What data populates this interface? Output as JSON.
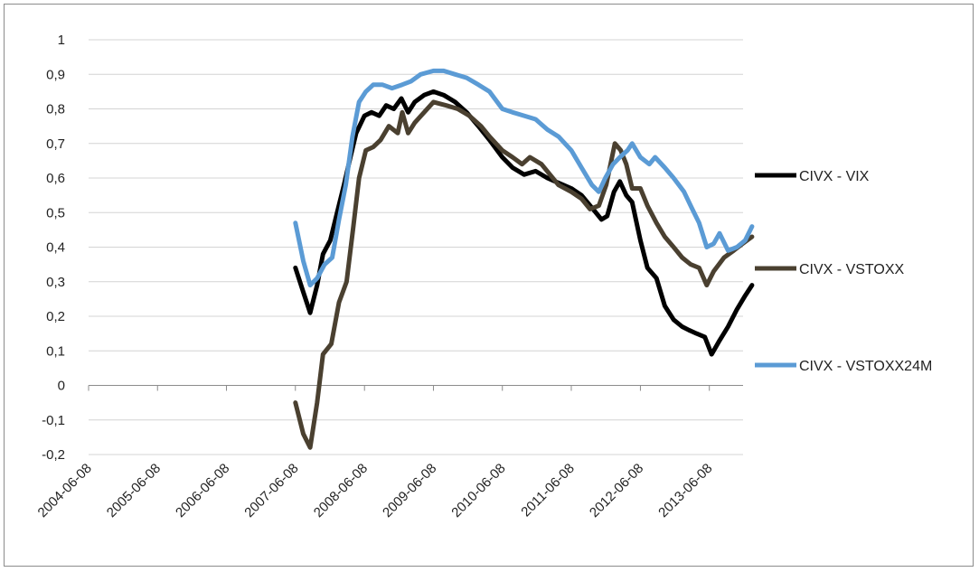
{
  "chart_data": {
    "type": "line",
    "title": "",
    "xlabel": "",
    "ylabel": "",
    "x_ticks": [
      "2004-06-08",
      "2005-06-08",
      "2006-06-08",
      "2007-06-08",
      "2008-06-08",
      "2009-06-08",
      "2010-06-08",
      "2011-06-08",
      "2012-06-08",
      "2013-06-08"
    ],
    "y_ticks": [
      "1",
      "0,9",
      "0,8",
      "0,7",
      "0,6",
      "0,5",
      "0,4",
      "0,3",
      "0,2",
      "0,1",
      "0",
      "-0,1",
      "-0,2"
    ],
    "ylim": [
      -0.2,
      1.0
    ],
    "xlim": [
      "2004-06-08",
      "2014-01-20"
    ],
    "grid": "horizontal",
    "legend_position": "right",
    "series": [
      {
        "name": "CIVX - VIX",
        "color": "#000000",
        "points": [
          [
            "2007-06-08",
            0.34
          ],
          [
            "2007-07-20",
            0.27
          ],
          [
            "2007-08-25",
            0.21
          ],
          [
            "2007-10-01",
            0.29
          ],
          [
            "2007-11-01",
            0.38
          ],
          [
            "2007-12-10",
            0.42
          ],
          [
            "2008-01-15",
            0.5
          ],
          [
            "2008-02-20",
            0.58
          ],
          [
            "2008-03-25",
            0.66
          ],
          [
            "2008-04-25",
            0.73
          ],
          [
            "2008-06-08",
            0.78
          ],
          [
            "2008-07-15",
            0.79
          ],
          [
            "2008-08-25",
            0.78
          ],
          [
            "2008-10-01",
            0.81
          ],
          [
            "2008-11-10",
            0.8
          ],
          [
            "2008-12-20",
            0.83
          ],
          [
            "2009-01-25",
            0.79
          ],
          [
            "2009-03-01",
            0.82
          ],
          [
            "2009-04-20",
            0.84
          ],
          [
            "2009-06-08",
            0.85
          ],
          [
            "2009-08-01",
            0.84
          ],
          [
            "2009-10-01",
            0.82
          ],
          [
            "2009-12-01",
            0.79
          ],
          [
            "2010-02-01",
            0.75
          ],
          [
            "2010-04-01",
            0.71
          ],
          [
            "2010-06-08",
            0.66
          ],
          [
            "2010-08-01",
            0.63
          ],
          [
            "2010-10-01",
            0.61
          ],
          [
            "2010-12-01",
            0.62
          ],
          [
            "2011-02-01",
            0.6
          ],
          [
            "2011-03-15",
            0.59
          ],
          [
            "2011-06-08",
            0.57
          ],
          [
            "2011-08-01",
            0.55
          ],
          [
            "2011-10-01",
            0.51
          ],
          [
            "2011-11-15",
            0.48
          ],
          [
            "2011-12-15",
            0.49
          ],
          [
            "2012-01-20",
            0.56
          ],
          [
            "2012-02-20",
            0.59
          ],
          [
            "2012-03-25",
            0.55
          ],
          [
            "2012-04-25",
            0.53
          ],
          [
            "2012-06-08",
            0.42
          ],
          [
            "2012-07-15",
            0.34
          ],
          [
            "2012-09-01",
            0.31
          ],
          [
            "2012-10-15",
            0.23
          ],
          [
            "2012-12-01",
            0.19
          ],
          [
            "2013-01-15",
            0.17
          ],
          [
            "2013-02-20",
            0.16
          ],
          [
            "2013-04-01",
            0.15
          ],
          [
            "2013-05-15",
            0.14
          ],
          [
            "2013-06-20",
            0.09
          ],
          [
            "2013-08-01",
            0.13
          ],
          [
            "2013-09-15",
            0.17
          ],
          [
            "2013-11-01",
            0.22
          ],
          [
            "2013-12-15",
            0.26
          ],
          [
            "2014-01-20",
            0.29
          ]
        ]
      },
      {
        "name": "CIVX - VSTOXX",
        "color": "#4a4030",
        "points": [
          [
            "2007-06-08",
            -0.05
          ],
          [
            "2007-07-20",
            -0.14
          ],
          [
            "2007-08-25",
            -0.18
          ],
          [
            "2007-10-01",
            -0.05
          ],
          [
            "2007-11-01",
            0.09
          ],
          [
            "2007-12-15",
            0.12
          ],
          [
            "2008-01-25",
            0.24
          ],
          [
            "2008-03-05",
            0.3
          ],
          [
            "2008-04-10",
            0.46
          ],
          [
            "2008-05-10",
            0.6
          ],
          [
            "2008-06-15",
            0.68
          ],
          [
            "2008-07-25",
            0.69
          ],
          [
            "2008-09-01",
            0.71
          ],
          [
            "2008-10-15",
            0.75
          ],
          [
            "2008-12-01",
            0.73
          ],
          [
            "2008-12-25",
            0.79
          ],
          [
            "2009-01-25",
            0.73
          ],
          [
            "2009-03-01",
            0.76
          ],
          [
            "2009-04-20",
            0.79
          ],
          [
            "2009-06-08",
            0.82
          ],
          [
            "2009-08-15",
            0.81
          ],
          [
            "2009-10-15",
            0.8
          ],
          [
            "2009-12-15",
            0.78
          ],
          [
            "2010-02-15",
            0.75
          ],
          [
            "2010-04-01",
            0.72
          ],
          [
            "2010-06-08",
            0.68
          ],
          [
            "2010-08-01",
            0.66
          ],
          [
            "2010-09-20",
            0.64
          ],
          [
            "2010-11-01",
            0.66
          ],
          [
            "2011-01-01",
            0.64
          ],
          [
            "2011-02-15",
            0.61
          ],
          [
            "2011-04-01",
            0.58
          ],
          [
            "2011-06-08",
            0.56
          ],
          [
            "2011-08-01",
            0.54
          ],
          [
            "2011-09-15",
            0.51
          ],
          [
            "2011-11-01",
            0.52
          ],
          [
            "2011-12-10",
            0.58
          ],
          [
            "2012-01-25",
            0.7
          ],
          [
            "2012-02-25",
            0.68
          ],
          [
            "2012-03-25",
            0.64
          ],
          [
            "2012-04-25",
            0.57
          ],
          [
            "2012-06-08",
            0.57
          ],
          [
            "2012-07-15",
            0.52
          ],
          [
            "2012-09-01",
            0.47
          ],
          [
            "2012-10-15",
            0.43
          ],
          [
            "2012-12-01",
            0.4
          ],
          [
            "2013-01-15",
            0.37
          ],
          [
            "2013-03-01",
            0.35
          ],
          [
            "2013-04-15",
            0.34
          ],
          [
            "2013-05-25",
            0.29
          ],
          [
            "2013-07-01",
            0.33
          ],
          [
            "2013-08-25",
            0.37
          ],
          [
            "2013-10-15",
            0.39
          ],
          [
            "2013-12-01",
            0.41
          ],
          [
            "2014-01-20",
            0.43
          ]
        ]
      },
      {
        "name": "CIVX - VSTOXX24M",
        "color": "#5b9bd5",
        "points": [
          [
            "2007-06-08",
            0.47
          ],
          [
            "2007-07-20",
            0.36
          ],
          [
            "2007-08-25",
            0.29
          ],
          [
            "2007-10-01",
            0.31
          ],
          [
            "2007-11-10",
            0.35
          ],
          [
            "2007-12-20",
            0.37
          ],
          [
            "2008-01-25",
            0.48
          ],
          [
            "2008-03-01",
            0.58
          ],
          [
            "2008-04-05",
            0.72
          ],
          [
            "2008-05-10",
            0.82
          ],
          [
            "2008-06-15",
            0.85
          ],
          [
            "2008-07-25",
            0.87
          ],
          [
            "2008-09-10",
            0.87
          ],
          [
            "2008-11-01",
            0.86
          ],
          [
            "2008-12-25",
            0.87
          ],
          [
            "2009-02-10",
            0.88
          ],
          [
            "2009-04-01",
            0.9
          ],
          [
            "2009-06-08",
            0.91
          ],
          [
            "2009-08-01",
            0.91
          ],
          [
            "2009-10-01",
            0.9
          ],
          [
            "2009-12-01",
            0.89
          ],
          [
            "2010-02-01",
            0.87
          ],
          [
            "2010-04-01",
            0.85
          ],
          [
            "2010-06-08",
            0.8
          ],
          [
            "2010-08-01",
            0.79
          ],
          [
            "2010-10-01",
            0.78
          ],
          [
            "2010-12-01",
            0.77
          ],
          [
            "2011-02-01",
            0.74
          ],
          [
            "2011-04-01",
            0.72
          ],
          [
            "2011-06-08",
            0.68
          ],
          [
            "2011-08-01",
            0.63
          ],
          [
            "2011-09-25",
            0.58
          ],
          [
            "2011-11-01",
            0.56
          ],
          [
            "2011-12-05",
            0.6
          ],
          [
            "2012-01-15",
            0.64
          ],
          [
            "2012-02-20",
            0.66
          ],
          [
            "2012-04-01",
            0.68
          ],
          [
            "2012-04-25",
            0.7
          ],
          [
            "2012-06-08",
            0.66
          ],
          [
            "2012-07-25",
            0.64
          ],
          [
            "2012-08-25",
            0.66
          ],
          [
            "2012-10-15",
            0.63
          ],
          [
            "2012-12-01",
            0.6
          ],
          [
            "2013-01-25",
            0.56
          ],
          [
            "2013-03-01",
            0.52
          ],
          [
            "2013-04-15",
            0.47
          ],
          [
            "2013-05-25",
            0.4
          ],
          [
            "2013-07-01",
            0.41
          ],
          [
            "2013-08-01",
            0.44
          ],
          [
            "2013-09-15",
            0.39
          ],
          [
            "2013-11-01",
            0.4
          ],
          [
            "2013-12-15",
            0.42
          ],
          [
            "2014-01-20",
            0.46
          ]
        ]
      }
    ]
  }
}
